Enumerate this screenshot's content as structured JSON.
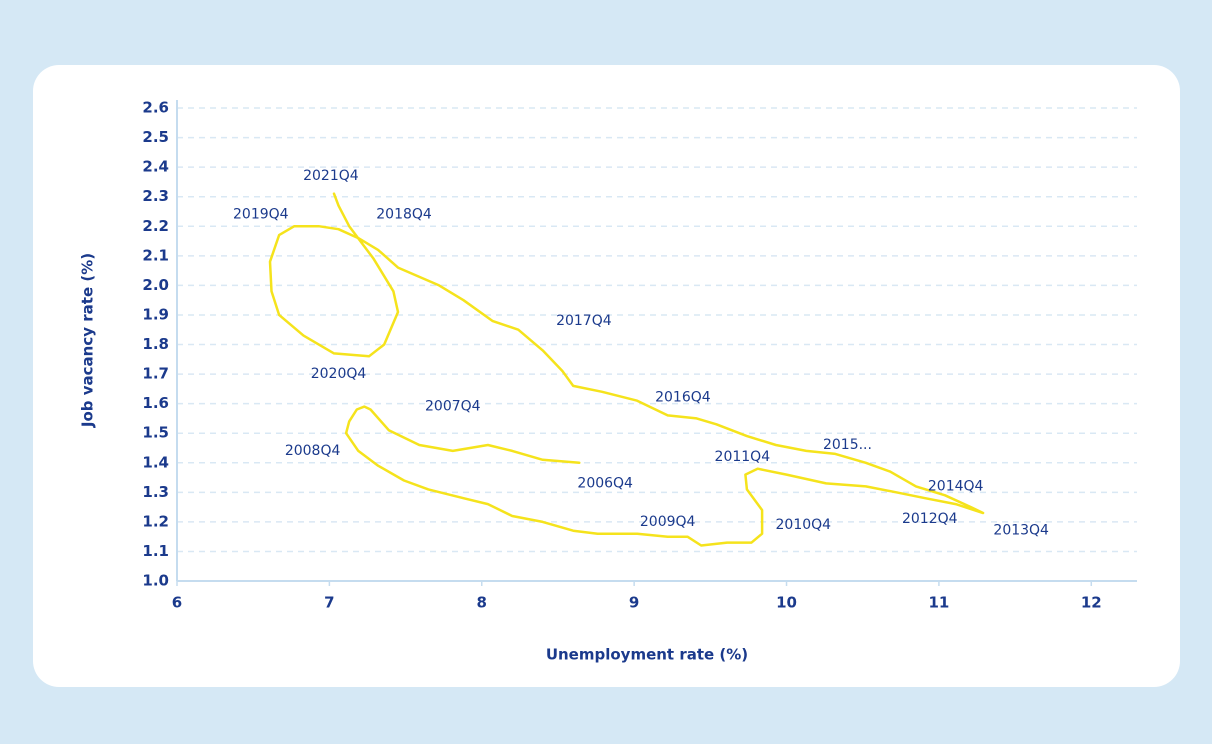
{
  "chart_data": {
    "type": "line",
    "xlabel": "Unemployment rate (%)",
    "ylabel": "Job vacancy rate (%)",
    "x": [
      8.64,
      8.4,
      8.2,
      8.04,
      7.81,
      7.59,
      7.39,
      7.27,
      7.23,
      7.18,
      7.13,
      7.11,
      7.19,
      7.32,
      7.49,
      7.65,
      7.88,
      8.04,
      8.2,
      8.4,
      8.6,
      8.76,
      9.02,
      9.22,
      9.35,
      9.44,
      9.61,
      9.77,
      9.84,
      9.84,
      9.74,
      9.73,
      9.81,
      10.0,
      10.26,
      10.52,
      10.72,
      10.91,
      11.11,
      11.29,
      11.21,
      11.04,
      10.85,
      10.68,
      10.52,
      10.32,
      10.13,
      9.93,
      9.74,
      9.54,
      9.41,
      9.22,
      9.02,
      8.79,
      8.6,
      8.53,
      8.4,
      8.24,
      8.07,
      7.88,
      7.72,
      7.45,
      7.32,
      7.19,
      7.06,
      6.93,
      6.77,
      6.67,
      6.61,
      6.62,
      6.67,
      6.83,
      7.03,
      7.26,
      7.36,
      7.45,
      7.42,
      7.29,
      7.13,
      7.06,
      7.03
    ],
    "values": [
      1.4,
      1.41,
      1.44,
      1.46,
      1.44,
      1.46,
      1.51,
      1.58,
      1.59,
      1.58,
      1.54,
      1.5,
      1.44,
      1.39,
      1.34,
      1.31,
      1.28,
      1.26,
      1.22,
      1.2,
      1.17,
      1.16,
      1.16,
      1.15,
      1.15,
      1.12,
      1.13,
      1.13,
      1.16,
      1.24,
      1.31,
      1.36,
      1.38,
      1.36,
      1.33,
      1.32,
      1.3,
      1.28,
      1.26,
      1.23,
      1.25,
      1.29,
      1.32,
      1.37,
      1.4,
      1.43,
      1.44,
      1.46,
      1.49,
      1.53,
      1.55,
      1.56,
      1.61,
      1.64,
      1.66,
      1.71,
      1.78,
      1.85,
      1.88,
      1.95,
      2.0,
      2.06,
      2.12,
      2.16,
      2.19,
      2.2,
      2.2,
      2.17,
      2.08,
      1.98,
      1.9,
      1.83,
      1.77,
      1.76,
      1.8,
      1.91,
      1.98,
      2.09,
      2.2,
      2.27,
      2.31
    ],
    "color": "#f5e31c",
    "xlim": [
      6,
      12.3
    ],
    "ylim": [
      1.0,
      2.6
    ],
    "xticks": [
      6,
      7,
      8,
      9,
      10,
      11,
      12
    ],
    "yticks": [
      {
        "value": 1.0,
        "label": "1.0"
      },
      1.1,
      1.2,
      1.3,
      1.4,
      1.5,
      1.6,
      1.7,
      1.8,
      1.9,
      {
        "value": 2.0,
        "label": "2.0"
      },
      2.1,
      2.2,
      2.3,
      2.4,
      2.5,
      2.6
    ],
    "grid": true,
    "annotations": [
      {
        "text": "2021Q4",
        "x": 7.01,
        "y": 2.37
      },
      {
        "text": "2019Q4",
        "x": 6.55,
        "y": 2.24
      },
      {
        "text": "2018Q4",
        "x": 7.49,
        "y": 2.24
      },
      {
        "text": "2017Q4",
        "x": 8.67,
        "y": 1.88
      },
      {
        "text": "2020Q4",
        "x": 7.06,
        "y": 1.7
      },
      {
        "text": "2007Q4",
        "x": 7.81,
        "y": 1.59
      },
      {
        "text": "2016Q4",
        "x": 9.32,
        "y": 1.62
      },
      {
        "text": "2008Q4",
        "x": 6.89,
        "y": 1.44
      },
      {
        "text": "2006Q4",
        "x": 8.81,
        "y": 1.33
      },
      {
        "text": "2011Q4",
        "x": 9.71,
        "y": 1.42
      },
      {
        "text": "2015...",
        "x": 10.4,
        "y": 1.46
      },
      {
        "text": "2014Q4",
        "x": 11.11,
        "y": 1.32
      },
      {
        "text": "2012Q4",
        "x": 10.94,
        "y": 1.21
      },
      {
        "text": "2013Q4",
        "x": 11.54,
        "y": 1.17
      },
      {
        "text": "2009Q4",
        "x": 9.22,
        "y": 1.2
      },
      {
        "text": "2010Q4",
        "x": 10.11,
        "y": 1.19
      }
    ]
  }
}
